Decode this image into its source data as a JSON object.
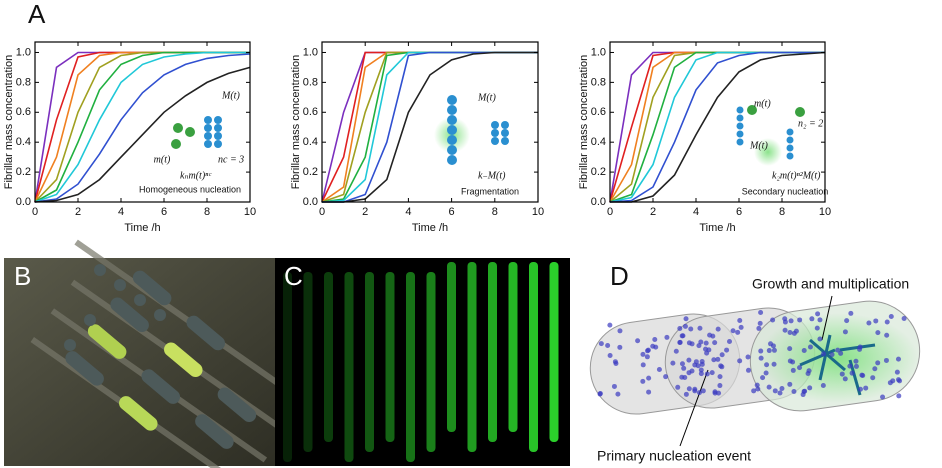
{
  "panel_labels": [
    "A",
    "B",
    "C",
    "D"
  ],
  "chart_data": [
    {
      "type": "line",
      "x": [
        0,
        1,
        2,
        3,
        4,
        5,
        6,
        7,
        8,
        9,
        10
      ],
      "xlim": [
        0,
        10
      ],
      "ylim": [
        0,
        1.07
      ],
      "xticks": [
        0,
        2,
        4,
        6,
        8,
        10
      ],
      "yticks": [
        {
          "value": 0,
          "label": "0.0"
        },
        0.2,
        0.4,
        0.6,
        0.8,
        {
          "value": 1,
          "label": "1.0"
        }
      ],
      "xlabel": "Time /h",
      "ylabel": "Fibrillar mass concentration",
      "series": [
        {
          "color": "#7b2fbe",
          "values": [
            0,
            0.9,
            1,
            1,
            1,
            1,
            1,
            1,
            1,
            1,
            1
          ]
        },
        {
          "color": "#e02020",
          "values": [
            0,
            0.55,
            0.97,
            1,
            1,
            1,
            1,
            1,
            1,
            1,
            1
          ]
        },
        {
          "color": "#f08020",
          "values": [
            0,
            0.3,
            0.85,
            0.98,
            1,
            1,
            1,
            1,
            1,
            1,
            1
          ]
        },
        {
          "color": "#a0a020",
          "values": [
            0,
            0.15,
            0.6,
            0.9,
            0.98,
            1,
            1,
            1,
            1,
            1,
            1
          ]
        },
        {
          "color": "#20b040",
          "values": [
            0,
            0.08,
            0.4,
            0.75,
            0.92,
            0.98,
            1,
            1,
            1,
            1,
            1
          ]
        },
        {
          "color": "#20c8d8",
          "values": [
            0,
            0.05,
            0.25,
            0.55,
            0.8,
            0.92,
            0.97,
            0.99,
            1,
            1,
            1
          ]
        },
        {
          "color": "#3050d0",
          "values": [
            0,
            0.02,
            0.12,
            0.32,
            0.55,
            0.73,
            0.85,
            0.92,
            0.96,
            0.98,
            0.99
          ]
        },
        {
          "color": "#222222",
          "values": [
            0,
            0.01,
            0.05,
            0.15,
            0.3,
            0.45,
            0.6,
            0.71,
            0.8,
            0.86,
            0.9
          ]
        }
      ],
      "annotations": [
        "M(t)",
        "m(t)",
        "nc = 3",
        "kₙm(t)ⁿᶜ",
        "Homogeneous nucleation"
      ]
    },
    {
      "type": "line",
      "x": [
        0,
        1,
        2,
        3,
        4,
        5,
        6,
        7,
        8,
        9,
        10
      ],
      "xlim": [
        0,
        10
      ],
      "ylim": [
        0,
        1.07
      ],
      "xticks": [
        0,
        2,
        4,
        6,
        8,
        10
      ],
      "yticks": [
        {
          "value": 0,
          "label": "0.0"
        },
        0.2,
        0.4,
        0.6,
        0.8,
        {
          "value": 1,
          "label": "1.0"
        }
      ],
      "xlabel": "Time /h",
      "ylabel": "Fibrillar mass concentration",
      "series": [
        {
          "color": "#7b2fbe",
          "values": [
            0,
            0.6,
            1,
            1,
            1,
            1,
            1,
            1,
            1,
            1,
            1
          ]
        },
        {
          "color": "#e02020",
          "values": [
            0,
            0.3,
            1,
            1,
            1,
            1,
            1,
            1,
            1,
            1,
            1
          ]
        },
        {
          "color": "#f08020",
          "values": [
            0,
            0.1,
            0.9,
            1,
            1,
            1,
            1,
            1,
            1,
            1,
            1
          ]
        },
        {
          "color": "#a0a020",
          "values": [
            0,
            0.05,
            0.6,
            1,
            1,
            1,
            1,
            1,
            1,
            1,
            1
          ]
        },
        {
          "color": "#20b040",
          "values": [
            0,
            0.02,
            0.3,
            0.98,
            1,
            1,
            1,
            1,
            1,
            1,
            1
          ]
        },
        {
          "color": "#20c8d8",
          "values": [
            0,
            0.01,
            0.15,
            0.85,
            1,
            1,
            1,
            1,
            1,
            1,
            1
          ]
        },
        {
          "color": "#3050d0",
          "values": [
            0,
            0,
            0.05,
            0.4,
            0.98,
            1,
            1,
            1,
            1,
            1,
            1
          ]
        },
        {
          "color": "#222222",
          "values": [
            0,
            0,
            0.02,
            0.15,
            0.6,
            0.85,
            0.95,
            0.99,
            1,
            1,
            1
          ]
        }
      ],
      "annotations": [
        "M(t)",
        "k₋M(t)",
        "Fragmentation"
      ]
    },
    {
      "type": "line",
      "x": [
        0,
        1,
        2,
        3,
        4,
        5,
        6,
        7,
        8,
        9,
        10
      ],
      "xlim": [
        0,
        10
      ],
      "ylim": [
        0,
        1.07
      ],
      "xticks": [
        0,
        2,
        4,
        6,
        8,
        10
      ],
      "yticks": [
        {
          "value": 0,
          "label": "0.0"
        },
        0.2,
        0.4,
        0.6,
        0.8,
        {
          "value": 1,
          "label": "1.0"
        }
      ],
      "xlabel": "Time /h",
      "ylabel": "Fibrillar mass concentration",
      "series": [
        {
          "color": "#7b2fbe",
          "values": [
            0,
            0.85,
            1,
            1,
            1,
            1,
            1,
            1,
            1,
            1,
            1
          ]
        },
        {
          "color": "#e02020",
          "values": [
            0,
            0.5,
            0.98,
            1,
            1,
            1,
            1,
            1,
            1,
            1,
            1
          ]
        },
        {
          "color": "#f08020",
          "values": [
            0,
            0.25,
            0.9,
            1,
            1,
            1,
            1,
            1,
            1,
            1,
            1
          ]
        },
        {
          "color": "#a0a020",
          "values": [
            0,
            0.12,
            0.7,
            0.98,
            1,
            1,
            1,
            1,
            1,
            1,
            1
          ]
        },
        {
          "color": "#20b040",
          "values": [
            0,
            0.05,
            0.45,
            0.9,
            1,
            1,
            1,
            1,
            1,
            1,
            1
          ]
        },
        {
          "color": "#20c8d8",
          "values": [
            0,
            0.03,
            0.25,
            0.7,
            0.95,
            1,
            1,
            1,
            1,
            1,
            1
          ]
        },
        {
          "color": "#3050d0",
          "values": [
            0,
            0.01,
            0.1,
            0.4,
            0.75,
            0.93,
            0.98,
            1,
            1,
            1,
            1
          ]
        },
        {
          "color": "#222222",
          "values": [
            0,
            0,
            0.04,
            0.18,
            0.45,
            0.7,
            0.87,
            0.95,
            0.98,
            0.99,
            1
          ]
        }
      ],
      "annotations": [
        "m(t)",
        "n₂ = 2",
        "M(t)",
        "k₂m(t)ⁿ²M(t)",
        "Secondary nucleation"
      ]
    }
  ],
  "panel_d": {
    "labels": [
      "Growth and multiplication",
      "Primary nucleation event"
    ]
  }
}
